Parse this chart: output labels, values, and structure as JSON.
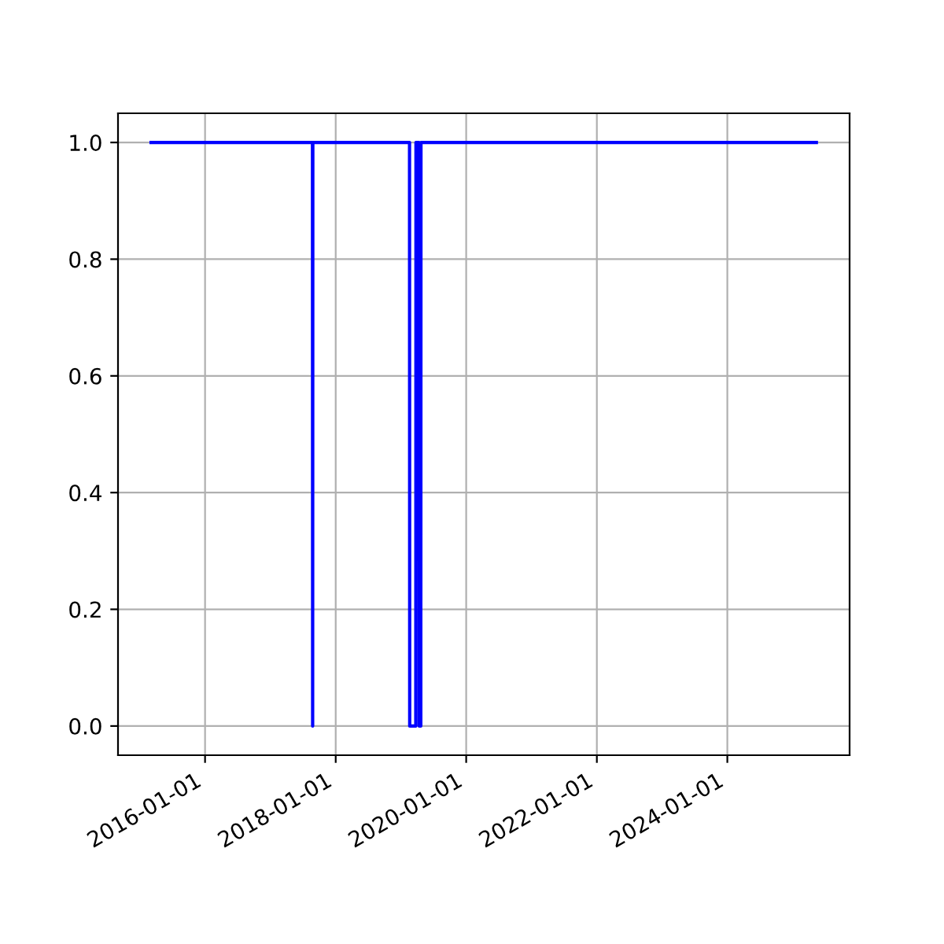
{
  "chart_data": {
    "type": "line",
    "x": [
      "2015-03-05",
      "2017-08-24",
      "2017-08-25",
      "2017-08-26",
      "2019-02-18",
      "2019-02-19",
      "2019-03-25",
      "2019-03-26",
      "2019-04-12",
      "2019-04-13",
      "2019-04-22",
      "2019-04-23",
      "2025-05-13"
    ],
    "series": [
      {
        "color": "#0000ff",
        "values": [
          1,
          1,
          0,
          1,
          1,
          0,
          0,
          1,
          1,
          0,
          0,
          1,
          1
        ]
      }
    ],
    "xlim": [
      "2014-09-01",
      "2025-11-15"
    ],
    "xticks": [
      "2016-01-01",
      "2018-01-01",
      "2020-01-01",
      "2022-01-01",
      "2024-01-01"
    ],
    "ylim": [
      -0.05,
      1.05
    ],
    "yticks": [
      {
        "value": 0,
        "label": "0.0"
      },
      {
        "value": 0.2,
        "label": "0.2"
      },
      {
        "value": 0.4,
        "label": "0.4"
      },
      {
        "value": 0.6,
        "label": "0.6"
      },
      {
        "value": 0.8,
        "label": "0.8"
      },
      {
        "value": 1,
        "label": "1.0"
      }
    ],
    "grid": true,
    "marker": "none",
    "line_style": "solid"
  }
}
